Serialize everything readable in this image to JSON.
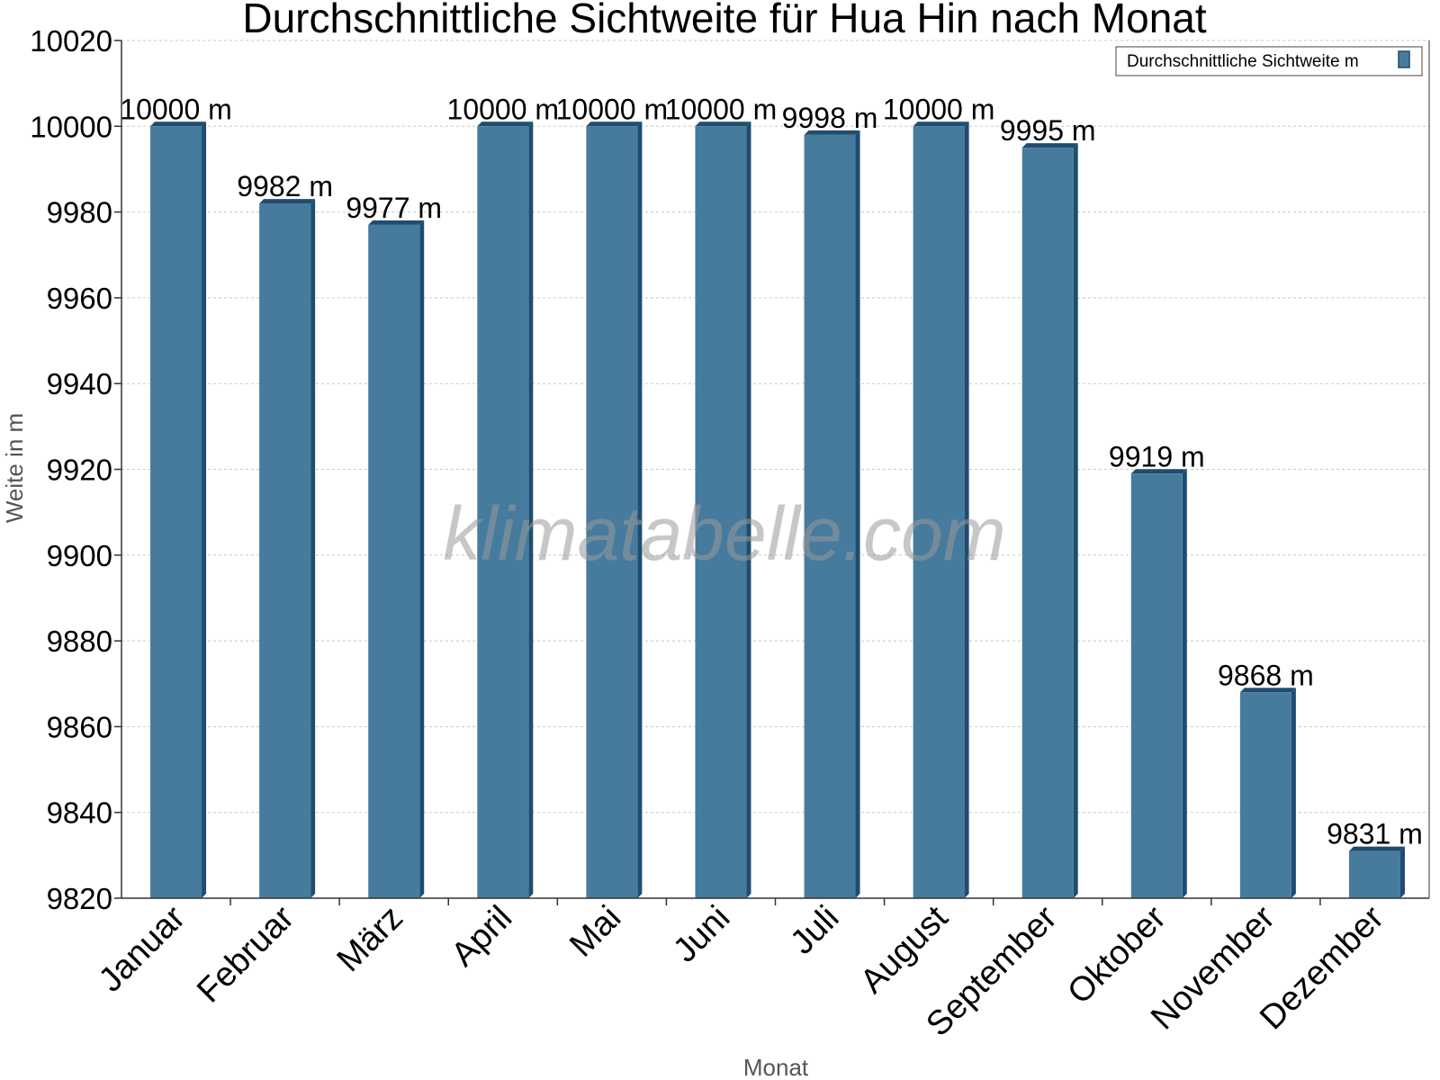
{
  "chart_data": {
    "type": "bar",
    "title": "Durchschnittliche Sichtweite für Hua Hin nach Monat",
    "xlabel": "Monat",
    "ylabel": "Weite in m",
    "categories": [
      "Januar",
      "Februar",
      "März",
      "April",
      "Mai",
      "Juni",
      "Juli",
      "August",
      "September",
      "Oktober",
      "November",
      "Dezember"
    ],
    "series": [
      {
        "name": "Durchschnittliche Sichtweite m",
        "values": [
          10000,
          9982,
          9977,
          10000,
          10000,
          10000,
          9998,
          10000,
          9995,
          9919,
          9868,
          9831
        ],
        "labels": [
          "10000 m",
          "9982 m",
          "9977 m",
          "10000 m",
          "10000 m",
          "10000 m",
          "9998 m",
          "10000 m",
          "9995 m",
          "9919 m",
          "9868 m",
          "9831 m"
        ]
      }
    ],
    "ylim": [
      9820,
      10020
    ],
    "yticks": [
      9820,
      9840,
      9860,
      9880,
      9900,
      9920,
      9940,
      9960,
      9980,
      10000,
      10020
    ],
    "grid": true,
    "legend_position": "top-right",
    "colors": {
      "bar": "#467b9d",
      "bar_shade": "#1f4d6f",
      "grid": "#c8c8c8"
    }
  },
  "watermark": "klimatabelle.com"
}
